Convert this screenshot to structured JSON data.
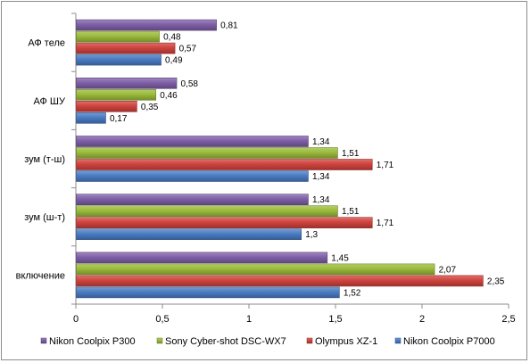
{
  "chart_data": {
    "type": "bar",
    "orientation": "horizontal",
    "categories": [
      "АФ теле",
      "АФ ШУ",
      "зум (т-ш)",
      "зум (ш-т)",
      "включение"
    ],
    "series": [
      {
        "name": "Nikon Coolpix P300",
        "color": "#7f5fa8",
        "values": [
          0.81,
          0.58,
          1.34,
          1.34,
          1.45
        ],
        "labels": [
          "0,81",
          "0,58",
          "1,34",
          "1,34",
          "1,45"
        ]
      },
      {
        "name": "Sony Cyber-shot DSC-WX7",
        "color": "#9bbb3b",
        "values": [
          0.48,
          0.46,
          1.51,
          1.51,
          2.07
        ],
        "labels": [
          "0,48",
          "0,46",
          "1,51",
          "1,51",
          "2,07"
        ]
      },
      {
        "name": "Olympus XZ-1",
        "color": "#d0433e",
        "values": [
          0.57,
          0.35,
          1.71,
          1.71,
          2.35
        ],
        "labels": [
          "0,57",
          "0,35",
          "1,71",
          "1,71",
          "2,35"
        ]
      },
      {
        "name": "Nikon Coolpix P7000",
        "color": "#4a7cc4",
        "values": [
          0.49,
          0.17,
          1.34,
          1.3,
          1.52
        ],
        "labels": [
          "0,49",
          "0,17",
          "1,34",
          "1,3",
          "1,52"
        ]
      }
    ],
    "xlim": [
      0,
      2.5
    ],
    "xticks": [
      0,
      0.5,
      1,
      1.5,
      2,
      2.5
    ],
    "xtick_labels": [
      "0",
      "0,5",
      "1",
      "1,5",
      "2",
      "2,5"
    ],
    "grid": false,
    "legend_position": "bottom"
  }
}
